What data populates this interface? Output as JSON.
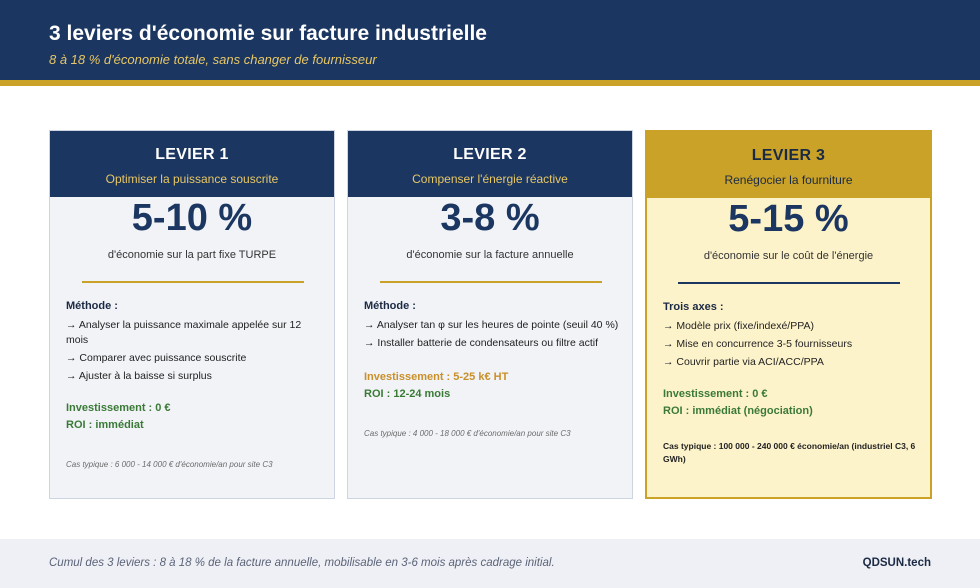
{
  "header": {
    "title": "3 leviers d'économie sur facture industrielle",
    "subtitle": "8 à 18 % d'économie totale, sans changer de fournisseur"
  },
  "cards": [
    {
      "label": "LEVIER 1",
      "name": "Optimiser la puissance souscrite",
      "value": "5-10 %",
      "value_desc": "d'économie sur la part fixe TURPE",
      "section_title": "Méthode :",
      "items": [
        "→ Analyser la puissance maximale appelée sur 12 mois",
        "→ Comparer avec puissance souscrite",
        "→ Ajuster à la baisse si surplus"
      ],
      "investment": "Investissement : 0 €",
      "roi": "ROI : immédiat",
      "case": "Cas typique : 6 000 - 14 000 € d'économie/an pour site C3"
    },
    {
      "label": "LEVIER 2",
      "name": "Compenser l'énergie réactive",
      "value": "3-8 %",
      "value_desc": "d'économie sur la facture annuelle",
      "section_title": "Méthode :",
      "items": [
        "→ Analyser tan φ sur les heures de pointe (seuil 40 %)",
        "→ Installer batterie de condensateurs ou filtre actif"
      ],
      "investment": "Investissement : 5-25 k€ HT",
      "roi": "ROI : 12-24 mois",
      "case": "Cas typique : 4 000 - 18 000 € d'économie/an pour site C3"
    },
    {
      "label": "LEVIER 3",
      "name": "Renégocier la fourniture",
      "value": "5-15 %",
      "value_desc": "d'économie sur le coût de l'énergie",
      "section_title": "Trois axes :",
      "items": [
        "→ Modèle prix (fixe/indexé/PPA)",
        "→ Mise en concurrence 3-5 fournisseurs",
        "→ Couvrir partie via ACI/ACC/PPA"
      ],
      "investment": "Investissement : 0 €",
      "roi": "ROI : immédiat (négociation)",
      "case": "Cas typique : 100 000 - 240 000 € économie/an (industriel C3, 6 GWh)"
    }
  ],
  "footer": {
    "summary": "Cumul des 3 leviers : 8 à 18 % de la facture annuelle, mobilisable en 3-6 mois après cadrage initial.",
    "brand": "QDSUN.tech"
  },
  "colors": {
    "navy": "#1b3660",
    "gold": "#c9a227",
    "green": "#3a7a36",
    "orange": "#c9902a",
    "highlight_bg": "#fdf3cb"
  }
}
